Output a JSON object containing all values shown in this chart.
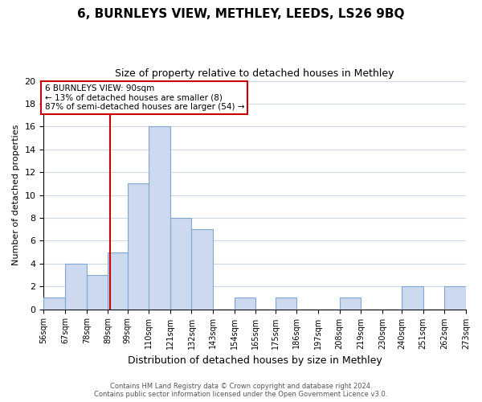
{
  "title": "6, BURNLEYS VIEW, METHLEY, LEEDS, LS26 9BQ",
  "subtitle": "Size of property relative to detached houses in Methley",
  "xlabel": "Distribution of detached houses by size in Methley",
  "ylabel": "Number of detached properties",
  "bin_edges": [
    56,
    67,
    78,
    89,
    99,
    110,
    121,
    132,
    143,
    154,
    165,
    175,
    186,
    197,
    208,
    219,
    230,
    240,
    251,
    262,
    273
  ],
  "bin_labels": [
    "56sqm",
    "67sqm",
    "78sqm",
    "89sqm",
    "99sqm",
    "110sqm",
    "121sqm",
    "132sqm",
    "143sqm",
    "154sqm",
    "165sqm",
    "175sqm",
    "186sqm",
    "197sqm",
    "208sqm",
    "219sqm",
    "230sqm",
    "240sqm",
    "251sqm",
    "262sqm",
    "273sqm"
  ],
  "counts": [
    1,
    4,
    3,
    5,
    11,
    16,
    8,
    7,
    0,
    1,
    0,
    1,
    0,
    0,
    1,
    0,
    0,
    2,
    0,
    2
  ],
  "bar_color": "#ccd9ee",
  "bar_edge_color": "#7fa8d0",
  "property_line_x": 90,
  "property_line_color": "#cc0000",
  "ylim": [
    0,
    20
  ],
  "yticks": [
    0,
    2,
    4,
    6,
    8,
    10,
    12,
    14,
    16,
    18,
    20
  ],
  "annotation_line1": "6 BURNLEYS VIEW: 90sqm",
  "annotation_line2": "← 13% of detached houses are smaller (8)",
  "annotation_line3": "87% of semi-detached houses are larger (54) →",
  "annotation_box_color": "#ffffff",
  "annotation_border_color": "#cc0000",
  "footer_line1": "Contains HM Land Registry data © Crown copyright and database right 2024.",
  "footer_line2": "Contains public sector information licensed under the Open Government Licence v3.0.",
  "background_color": "#ffffff",
  "grid_color": "#d0d8e8"
}
